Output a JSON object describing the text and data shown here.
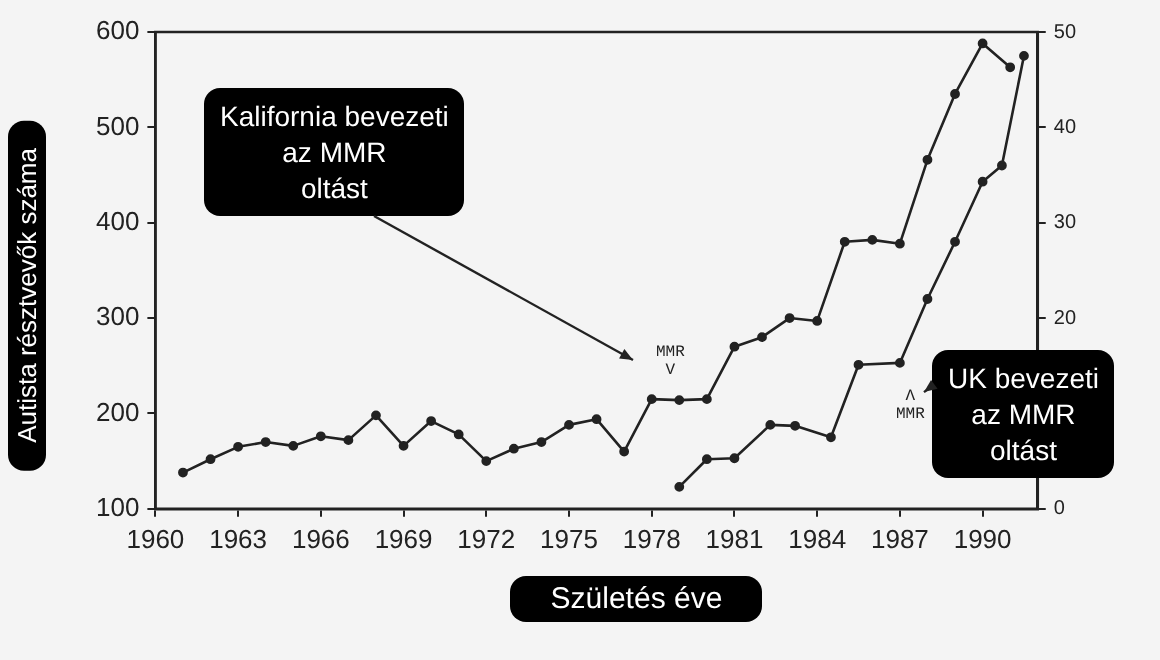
{
  "chart_data": {
    "type": "line",
    "xlabel": "Születés éve",
    "ylabel": "Autista résztvevők száma",
    "xlim": [
      1960,
      1992
    ],
    "xticks": [
      1960,
      1963,
      1966,
      1969,
      1972,
      1975,
      1978,
      1981,
      1984,
      1987,
      1990
    ],
    "ylim": [
      100,
      600
    ],
    "yticks": [
      100,
      200,
      300,
      400,
      500,
      600
    ],
    "y2lim": [
      0,
      50
    ],
    "y2ticks": [
      0,
      20,
      30,
      40,
      50
    ],
    "series": [
      {
        "color": "#222222",
        "x": [
          1961,
          1962,
          1963,
          1964,
          1965,
          1966,
          1967,
          1968,
          1969,
          1970,
          1971,
          1972,
          1973,
          1974,
          1975,
          1976,
          1977,
          1978,
          1979,
          1980,
          1981,
          1982,
          1983,
          1984,
          1985,
          1986,
          1987,
          1988,
          1989,
          1990,
          1991
        ],
        "values": [
          138,
          152,
          165,
          170,
          166,
          176,
          172,
          198,
          166,
          192,
          178,
          150,
          163,
          170,
          188,
          194,
          160,
          215,
          214,
          215,
          270,
          280,
          300,
          297,
          380,
          382,
          378,
          466,
          535,
          588,
          563
        ]
      },
      {
        "color": "#222222",
        "axis": "y2",
        "x": [
          1979,
          1980,
          1981,
          1982.3,
          1983.2,
          1984.5,
          1985.5,
          1987,
          1988,
          1989,
          1990,
          1990.7,
          1991.5
        ],
        "values": [
          2.3,
          5.2,
          5.3,
          8.8,
          8.7,
          7.5,
          15.1,
          15.3,
          22,
          28,
          34.3,
          36,
          47.5
        ]
      }
    ],
    "annotations": [
      "Kalifornia bevezeti\naz MMR\noltást",
      "UK bevezeti\naz MMR\noltást",
      "MMR\nV",
      "Λ\nMMR"
    ],
    "grid": false,
    "legend": false,
    "marker": "circle",
    "line_style": "solid"
  }
}
